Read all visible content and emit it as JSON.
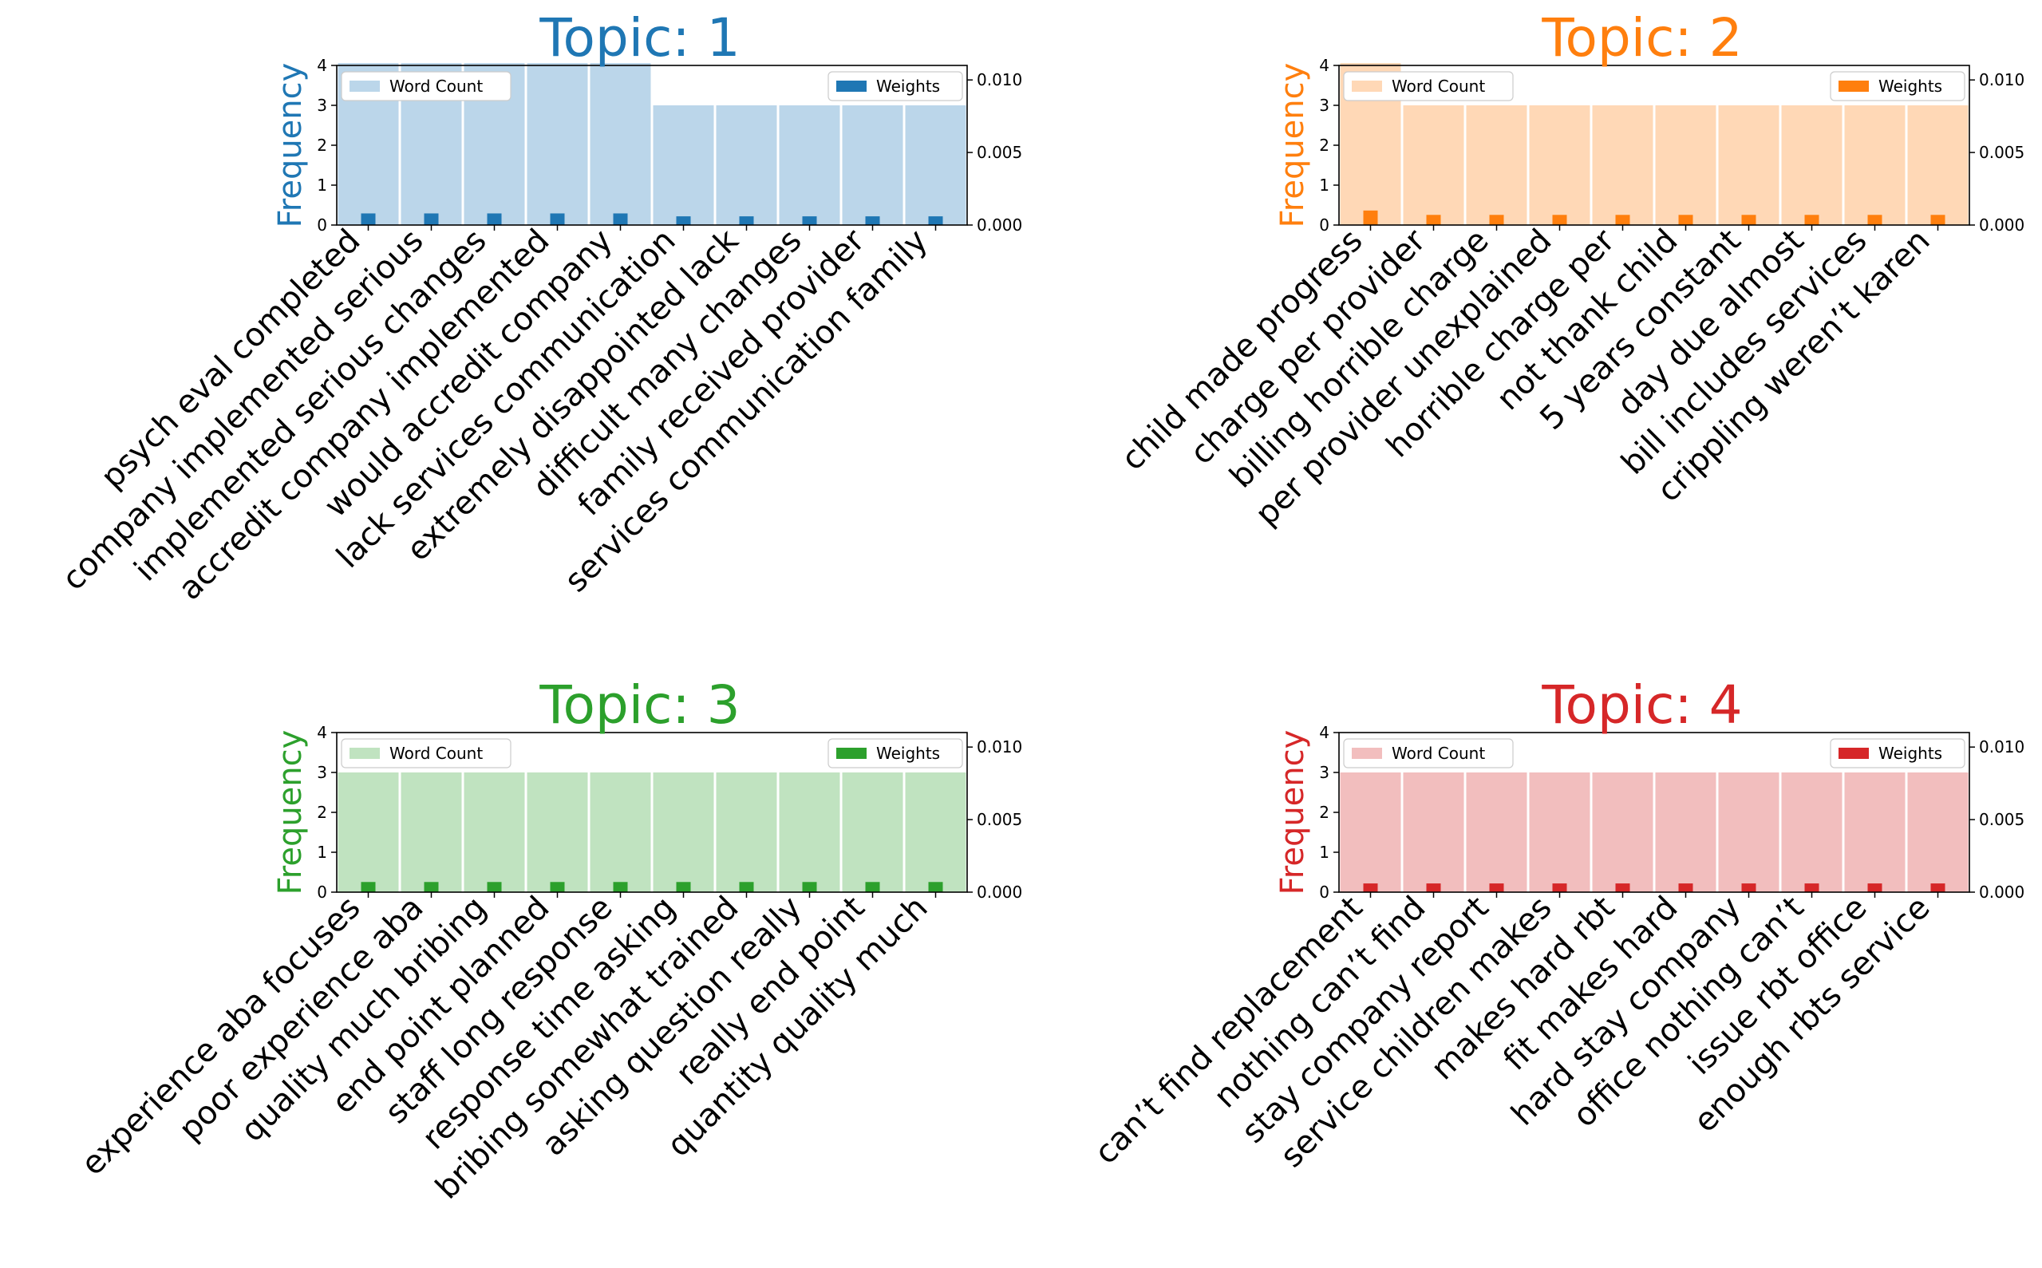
{
  "chart_data": [
    {
      "type": "bar",
      "title": "Topic: 1",
      "ylabel": "Frequency",
      "color": "#1f77b4",
      "light_color": "#bbd6ea",
      "ylim": [
        0,
        4
      ],
      "yticks": [
        "0",
        "1",
        "2",
        "3",
        "4"
      ],
      "y2lim": [
        0,
        0.011
      ],
      "y2ticks": [
        "0.000",
        "0.005",
        "0.010"
      ],
      "legend_left": "Word Count",
      "legend_right": "Weights",
      "categories": [
        "psych eval completed",
        "company implemented serious",
        "implemented serious changes",
        "accredit company implemented",
        "would accredit company",
        "lack services communication",
        "extremely disappointed lack",
        "difficult many changes",
        "family received provider",
        "services communication family"
      ],
      "series": [
        {
          "name": "Word Count",
          "values": [
            4,
            4,
            4,
            4,
            4,
            3,
            3,
            3,
            3,
            3
          ]
        },
        {
          "name": "Weights",
          "values": [
            0.0008,
            0.0008,
            0.0008,
            0.0008,
            0.0008,
            0.0006,
            0.0006,
            0.0006,
            0.0006,
            0.0006
          ]
        }
      ]
    },
    {
      "type": "bar",
      "title": "Topic: 2",
      "ylabel": "Frequency",
      "color": "#ff7f0e",
      "light_color": "#ffd8b6",
      "ylim": [
        0,
        4
      ],
      "yticks": [
        "0",
        "1",
        "2",
        "3",
        "4"
      ],
      "y2lim": [
        0,
        0.011
      ],
      "y2ticks": [
        "0.000",
        "0.005",
        "0.010"
      ],
      "legend_left": "Word Count",
      "legend_right": "Weights",
      "categories": [
        "child made progress",
        "charge per provider",
        "billing horrible charge",
        "per provider unexplained",
        "horrible charge per",
        "not thank child",
        "5 years constant",
        "day due almost",
        "bill includes services",
        "crippling weren’t karen"
      ],
      "series": [
        {
          "name": "Word Count",
          "values": [
            4,
            3,
            3,
            3,
            3,
            3,
            3,
            3,
            3,
            3
          ]
        },
        {
          "name": "Weights",
          "values": [
            0.001,
            0.0007,
            0.0007,
            0.0007,
            0.0007,
            0.0007,
            0.0007,
            0.0007,
            0.0007,
            0.0007
          ]
        }
      ]
    },
    {
      "type": "bar",
      "title": "Topic: 3",
      "ylabel": "Frequency",
      "color": "#2ca02c",
      "light_color": "#c0e3c0",
      "ylim": [
        0,
        4
      ],
      "yticks": [
        "0",
        "1",
        "2",
        "3",
        "4"
      ],
      "y2lim": [
        0,
        0.011
      ],
      "y2ticks": [
        "0.000",
        "0.005",
        "0.010"
      ],
      "legend_left": "Word Count",
      "legend_right": "Weights",
      "categories": [
        "experience aba focuses",
        "poor experience aba",
        "quality much bribing",
        "end point planned",
        "staff long response",
        "response time asking",
        "bribing somewhat trained",
        "asking question really",
        "really end point",
        "quantity quality much"
      ],
      "series": [
        {
          "name": "Word Count",
          "values": [
            3,
            3,
            3,
            3,
            3,
            3,
            3,
            3,
            3,
            3
          ]
        },
        {
          "name": "Weights",
          "values": [
            0.0007,
            0.0007,
            0.0007,
            0.0007,
            0.0007,
            0.0007,
            0.0007,
            0.0007,
            0.0007,
            0.0007
          ]
        }
      ]
    },
    {
      "type": "bar",
      "title": "Topic: 4",
      "ylabel": "Frequency",
      "color": "#d62728",
      "light_color": "#f2bebe",
      "ylim": [
        0,
        4
      ],
      "yticks": [
        "0",
        "1",
        "2",
        "3",
        "4"
      ],
      "y2lim": [
        0,
        0.011
      ],
      "y2ticks": [
        "0.000",
        "0.005",
        "0.010"
      ],
      "legend_left": "Word Count",
      "legend_right": "Weights",
      "categories": [
        "can’t find replacement",
        "nothing can’t find",
        "stay company report",
        "service children makes",
        "makes hard rbt",
        "fit makes hard",
        "hard stay company",
        "office nothing can’t",
        "issue rbt office",
        "enough rbts service"
      ],
      "series": [
        {
          "name": "Word Count",
          "values": [
            3,
            3,
            3,
            3,
            3,
            3,
            3,
            3,
            3,
            3
          ]
        },
        {
          "name": "Weights",
          "values": [
            0.0006,
            0.0006,
            0.0006,
            0.0006,
            0.0006,
            0.0006,
            0.0006,
            0.0006,
            0.0006,
            0.0006
          ]
        }
      ]
    }
  ]
}
